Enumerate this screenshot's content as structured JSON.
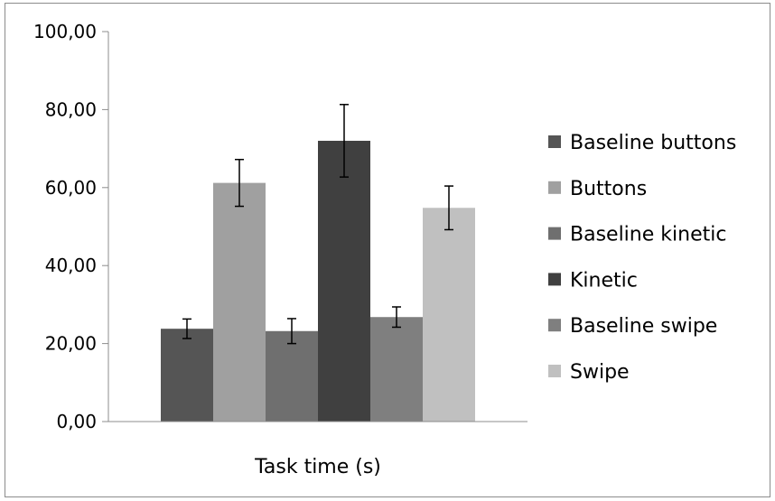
{
  "chart_data": {
    "type": "bar",
    "categories": [
      "Task time (s)"
    ],
    "xlabel": "Task time (s)",
    "ylabel": "",
    "title": "",
    "ylim": [
      0,
      100
    ],
    "yticks": [
      "0,00",
      "20,00",
      "40,00",
      "60,00",
      "80,00",
      "100,00"
    ],
    "legend_position": "right",
    "grid": false,
    "series": [
      {
        "name": "Baseline buttons",
        "value": 23.8,
        "error": 2.5,
        "color": "#555555"
      },
      {
        "name": "Buttons",
        "value": 61.2,
        "error": 6.0,
        "color": "#a0a0a0"
      },
      {
        "name": "Baseline kinetic",
        "value": 23.2,
        "error": 3.2,
        "color": "#6f6f6f"
      },
      {
        "name": "Kinetic",
        "value": 72.0,
        "error": 9.3,
        "color": "#404040"
      },
      {
        "name": "Baseline swipe",
        "value": 26.8,
        "error": 2.6,
        "color": "#7f7f7f"
      },
      {
        "name": "Swipe",
        "value": 54.8,
        "error": 5.6,
        "color": "#c0c0c0"
      }
    ]
  }
}
